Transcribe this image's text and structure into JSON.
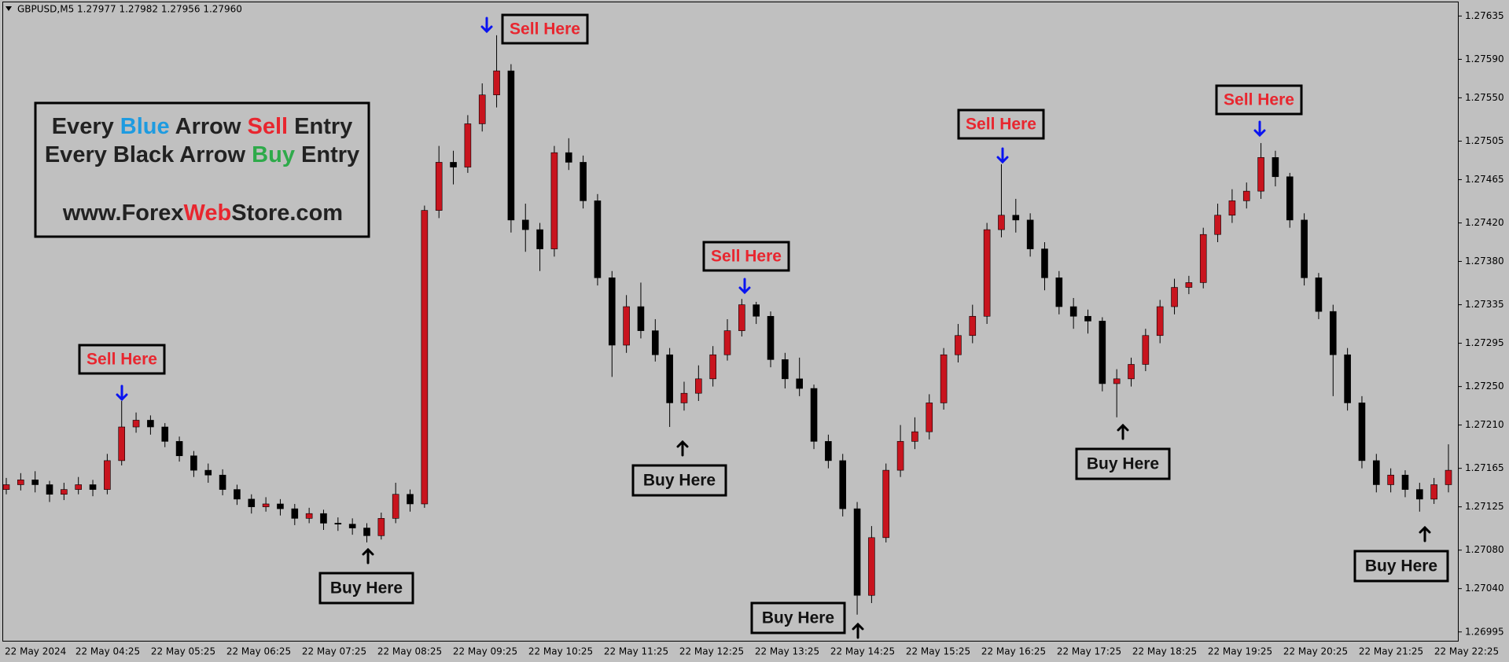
{
  "chart_data": {
    "type": "candlestick",
    "symbol": "GBPUSD,M5",
    "quote": "1.27977 1.27982 1.27956 1.27960",
    "up_color": "#c8141e",
    "down_color": "#000000",
    "background": "#c0c0c0",
    "ylim": [
      1.26985,
      1.2765
    ],
    "yticks": [
      1.27635,
      {
        "value": 1.2759,
        "label": "1.27590"
      },
      {
        "value": 1.2755,
        "label": "1.27550"
      },
      1.27505,
      1.27465,
      {
        "value": 1.2742,
        "label": "1.27420"
      },
      {
        "value": 1.2738,
        "label": "1.27380"
      },
      1.27335,
      1.27295,
      {
        "value": 1.2725,
        "label": "1.27250"
      },
      {
        "value": 1.2721,
        "label": "1.27210"
      },
      1.27165,
      1.27125,
      {
        "value": 1.2708,
        "label": "1.27080"
      },
      {
        "value": 1.2704,
        "label": "1.27040"
      },
      1.26995
    ],
    "xlabels": [
      "22 May 2024",
      "22 May 04:25",
      "22 May 05:25",
      "22 May 06:25",
      "22 May 07:25",
      "22 May 08:25",
      "22 May 09:25",
      "22 May 10:25",
      "22 May 11:25",
      "22 May 12:25",
      "22 May 13:25",
      "22 May 14:25",
      "22 May 15:25",
      "22 May 16:25",
      "22 May 17:25",
      "22 May 18:25",
      "22 May 19:25",
      "22 May 20:25",
      "22 May 21:25",
      "22 May 22:25"
    ],
    "open": [
      1.27143,
      1.27148,
      1.27153,
      1.27148,
      1.27138,
      1.27143,
      1.27148,
      1.27143,
      1.27173,
      1.27208,
      1.27215,
      1.27208,
      1.27193,
      1.27178,
      1.27163,
      1.27158,
      1.27143,
      1.27133,
      1.27125,
      1.27128,
      1.27123,
      1.27113,
      1.27118,
      1.27108,
      1.27107,
      1.27103,
      1.27095,
      1.27113,
      1.27138,
      1.27128,
      1.27433,
      1.27483,
      1.27478,
      1.27523,
      1.27553,
      1.27578,
      1.27423,
      1.27413,
      1.27393,
      1.27493,
      1.27483,
      1.27443,
      1.27363,
      1.27293,
      1.27333,
      1.27308,
      1.27283,
      1.27233,
      1.27243,
      1.27258,
      1.27283,
      1.27308,
      1.27335,
      1.27323,
      1.27278,
      1.27258,
      1.27248,
      1.27193,
      1.27173,
      1.27123,
      1.27033,
      1.27093,
      1.27163,
      1.27193,
      1.27203,
      1.27233,
      1.27283,
      1.27303,
      1.27323,
      1.27413,
      1.27428,
      1.27423,
      1.27393,
      1.27363,
      1.27333,
      1.27323,
      1.27318,
      1.27253,
      1.27258,
      1.27273,
      1.27303,
      1.27333,
      1.27353,
      1.27358,
      1.27408,
      1.27428,
      1.27443,
      1.27453,
      1.27488,
      1.27468,
      1.27423,
      1.27363,
      1.27328,
      1.27283,
      1.27233,
      1.27173,
      1.27148,
      1.27158,
      1.27143,
      1.27133,
      1.27148
    ],
    "high": [
      1.27155,
      1.2716,
      1.27162,
      1.27152,
      1.2715,
      1.27156,
      1.27153,
      1.2718,
      1.27235,
      1.27223,
      1.2722,
      1.27212,
      1.27198,
      1.27183,
      1.2717,
      1.27164,
      1.27148,
      1.27138,
      1.27135,
      1.27133,
      1.27128,
      1.27124,
      1.27122,
      1.27114,
      1.27113,
      1.27108,
      1.27119,
      1.2715,
      1.27143,
      1.27438,
      1.275,
      1.27495,
      1.27532,
      1.27565,
      1.27615,
      1.27585,
      1.2744,
      1.2742,
      1.275,
      1.27508,
      1.2749,
      1.2745,
      1.2737,
      1.27345,
      1.27358,
      1.2732,
      1.2729,
      1.27255,
      1.27272,
      1.27292,
      1.2732,
      1.27341,
      1.27338,
      1.27328,
      1.27285,
      1.2728,
      1.27252,
      1.272,
      1.2718,
      1.2713,
      1.27105,
      1.2717,
      1.2721,
      1.27218,
      1.27242,
      1.2729,
      1.27315,
      1.27335,
      1.2742,
      1.27481,
      1.27445,
      1.2743,
      1.274,
      1.2737,
      1.27342,
      1.2733,
      1.27322,
      1.27268,
      1.2728,
      1.2731,
      1.2734,
      1.27362,
      1.27365,
      1.27415,
      1.2744,
      1.27455,
      1.27462,
      1.27503,
      1.27495,
      1.27472,
      1.2743,
      1.27368,
      1.27335,
      1.2729,
      1.2724,
      1.2718,
      1.27165,
      1.27163,
      1.2715,
      1.27155,
      1.2719
    ],
    "low": [
      1.27138,
      1.27142,
      1.2714,
      1.2713,
      1.27132,
      1.27138,
      1.27136,
      1.27138,
      1.27168,
      1.27202,
      1.272,
      1.27187,
      1.27172,
      1.27156,
      1.2715,
      1.27137,
      1.27127,
      1.27118,
      1.2712,
      1.27116,
      1.27106,
      1.27108,
      1.27101,
      1.271,
      1.27096,
      1.27088,
      1.27091,
      1.27108,
      1.2712,
      1.27124,
      1.27425,
      1.2746,
      1.27472,
      1.27515,
      1.2754,
      1.2741,
      1.2739,
      1.2737,
      1.27385,
      1.27475,
      1.27435,
      1.27355,
      1.2726,
      1.27285,
      1.273,
      1.27276,
      1.27208,
      1.27225,
      1.27235,
      1.2725,
      1.27277,
      1.27302,
      1.27315,
      1.2727,
      1.27248,
      1.2724,
      1.27185,
      1.27165,
      1.27115,
      1.27013,
      1.27025,
      1.27088,
      1.27156,
      1.27185,
      1.27195,
      1.27226,
      1.27275,
      1.27295,
      1.27315,
      1.27405,
      1.2741,
      1.27385,
      1.2735,
      1.27325,
      1.2731,
      1.27305,
      1.27245,
      1.27218,
      1.2725,
      1.27266,
      1.27295,
      1.27325,
      1.27346,
      1.27352,
      1.274,
      1.2742,
      1.27435,
      1.27445,
      1.27458,
      1.27415,
      1.27355,
      1.2732,
      1.2724,
      1.27225,
      1.27165,
      1.2714,
      1.2714,
      1.27135,
      1.2712,
      1.27128,
      1.2714
    ],
    "close": [
      1.27148,
      1.27153,
      1.27148,
      1.27138,
      1.27143,
      1.27148,
      1.27143,
      1.27173,
      1.27208,
      1.27215,
      1.27208,
      1.27193,
      1.27178,
      1.27163,
      1.27158,
      1.27143,
      1.27133,
      1.27125,
      1.27128,
      1.27123,
      1.27113,
      1.27118,
      1.27108,
      1.27107,
      1.27103,
      1.27095,
      1.27113,
      1.27138,
      1.27128,
      1.27433,
      1.27483,
      1.27478,
      1.27523,
      1.27553,
      1.27578,
      1.27423,
      1.27413,
      1.27393,
      1.27493,
      1.27483,
      1.27443,
      1.27363,
      1.27293,
      1.27333,
      1.27308,
      1.27283,
      1.27233,
      1.27243,
      1.27258,
      1.27283,
      1.27308,
      1.27335,
      1.27323,
      1.27278,
      1.27258,
      1.27248,
      1.27193,
      1.27173,
      1.27123,
      1.27033,
      1.27093,
      1.27163,
      1.27193,
      1.27203,
      1.27233,
      1.27283,
      1.27303,
      1.27323,
      1.27413,
      1.27428,
      1.27423,
      1.27393,
      1.27363,
      1.27333,
      1.27323,
      1.27318,
      1.27253,
      1.27258,
      1.27273,
      1.27303,
      1.27333,
      1.27353,
      1.27358,
      1.27408,
      1.27428,
      1.27443,
      1.27453,
      1.27488,
      1.27468,
      1.27423,
      1.27363,
      1.27328,
      1.27283,
      1.27233,
      1.27173,
      1.27148,
      1.27158,
      1.27143,
      1.27133,
      1.27148,
      1.27163
    ],
    "annotations": [
      "Sell Here",
      "Sell Here",
      "Sell Here",
      "Sell Here",
      "Sell Here",
      "Buy Here",
      "Buy Here",
      "Buy Here",
      "Buy Here",
      "Buy Here"
    ],
    "info_box": {
      "line1": [
        "Every",
        "Blue",
        "Arrow",
        "Sell",
        "Entry"
      ],
      "line2": [
        "Every",
        "Black",
        "Arrow",
        "Buy",
        "Entry"
      ],
      "website": [
        "www.Forex",
        "Web",
        "Store.com"
      ]
    }
  }
}
